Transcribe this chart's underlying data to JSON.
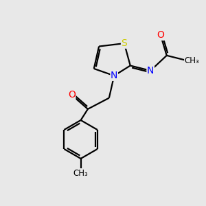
{
  "bg_color": "#e8e8e8",
  "bond_color": "#000000",
  "bond_width": 1.6,
  "dbo": 0.08,
  "atom_colors": {
    "N": "#0000ff",
    "O": "#ff0000",
    "S": "#cccc00",
    "C": "#000000"
  },
  "font_size": 9.5,
  "fig_size": [
    3.0,
    3.0
  ],
  "dpi": 100
}
